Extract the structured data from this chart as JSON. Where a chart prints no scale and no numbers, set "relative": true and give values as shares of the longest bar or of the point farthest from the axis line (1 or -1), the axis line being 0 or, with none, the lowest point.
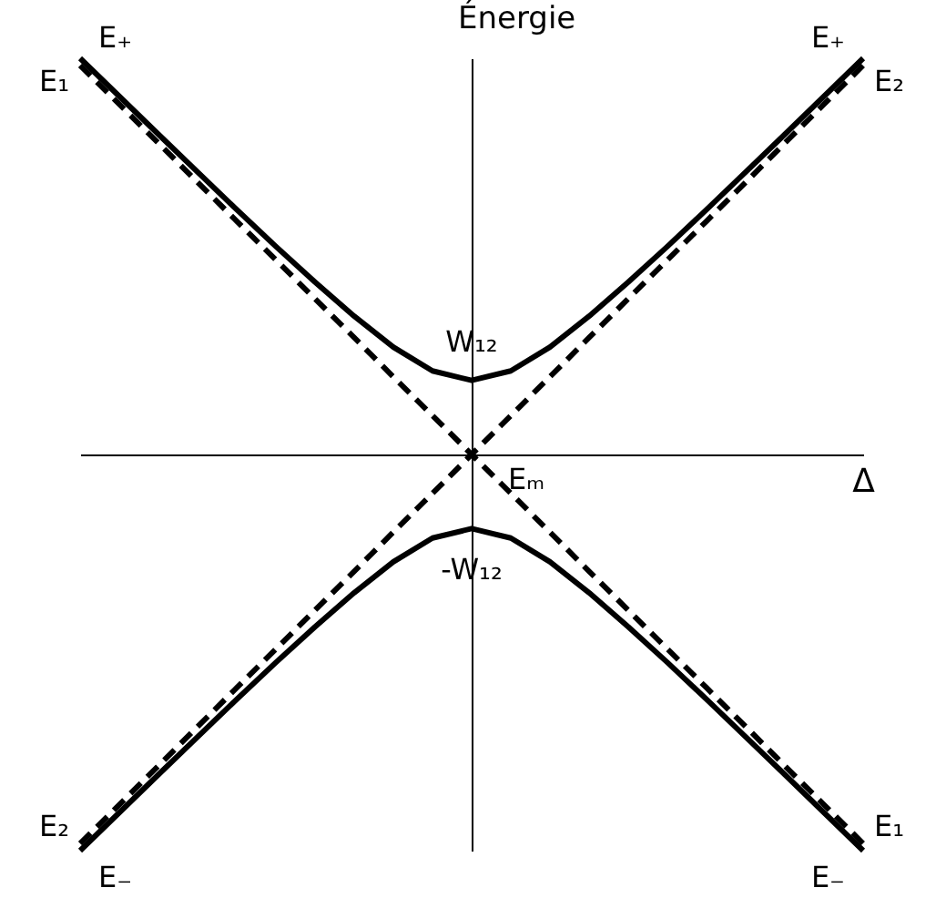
{
  "chart_data": {
    "type": "line",
    "xlabel": "Δ",
    "ylabel": "Énergie",
    "relative": true,
    "marker": "none",
    "legend": false,
    "grid": false,
    "categories": [
      null,
      null,
      null,
      null,
      null,
      null,
      null,
      null,
      null,
      null,
      null,
      null,
      null,
      null,
      null,
      null,
      null,
      null,
      null,
      null,
      null
    ],
    "series": [
      {
        "name": "E₊",
        "color": "#000000",
        "line_style": "solid",
        "values": [
          1,
          0.904,
          0.808,
          0.713,
          0.618,
          0.525,
          0.435,
          0.349,
          0.271,
          0.211,
          0.187,
          0.211,
          0.271,
          0.349,
          0.435,
          0.525,
          0.618,
          0.713,
          0.808,
          0.904,
          1
        ]
      },
      {
        "name": "E₋",
        "color": "#000000",
        "line_style": "solid",
        "values": [
          -1,
          -0.904,
          -0.808,
          -0.713,
          -0.618,
          -0.525,
          -0.435,
          -0.349,
          -0.271,
          -0.211,
          -0.187,
          -0.211,
          -0.271,
          -0.349,
          -0.435,
          -0.525,
          -0.618,
          -0.713,
          -0.808,
          -0.904,
          -1
        ]
      },
      {
        "name": "E₁",
        "color": "#000000",
        "line_style": "dashed",
        "values": [
          0.982,
          0.884,
          0.786,
          0.687,
          0.589,
          0.491,
          0.393,
          0.295,
          0.196,
          0.098,
          0,
          -0.098,
          -0.196,
          -0.295,
          -0.393,
          -0.491,
          -0.589,
          -0.687,
          -0.786,
          -0.884,
          -0.982
        ]
      },
      {
        "name": "E₂",
        "color": "#000000",
        "line_style": "dashed",
        "values": [
          -0.982,
          -0.884,
          -0.786,
          -0.687,
          -0.589,
          -0.491,
          -0.393,
          -0.295,
          -0.196,
          -0.098,
          0,
          0.098,
          0.196,
          0.295,
          0.393,
          0.491,
          0.589,
          0.687,
          0.786,
          0.884,
          0.982
        ]
      }
    ],
    "annotations": [
      {
        "text": "W₁₂",
        "y": 0.187
      },
      {
        "text": "-W₁₂",
        "y": -0.187
      },
      "Eₘ"
    ]
  }
}
